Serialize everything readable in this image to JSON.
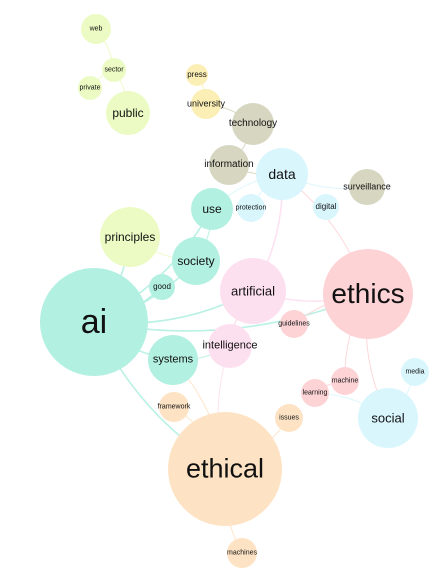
{
  "palette": {
    "teal": "#b2f0e1",
    "pink": "#fdd3d6",
    "peach": "#fde3c4",
    "lime": "#ecfbc4",
    "blue": "#d9f6fd",
    "olive": "#d6d6c1",
    "yellow": "#fcefb6",
    "lightpink": "#fde0ef"
  },
  "nodes": [
    {
      "id": "ai",
      "label": "ai",
      "color": "teal"
    },
    {
      "id": "ethics",
      "label": "ethics",
      "color": "pink"
    },
    {
      "id": "ethical",
      "label": "ethical",
      "color": "peach"
    },
    {
      "id": "artificial",
      "label": "artificial",
      "color": "lightpink"
    },
    {
      "id": "intelligence",
      "label": "intelligence",
      "color": "lightpink"
    },
    {
      "id": "social",
      "label": "social",
      "color": "blue"
    },
    {
      "id": "data",
      "label": "data",
      "color": "blue"
    },
    {
      "id": "principles",
      "label": "principles",
      "color": "lime"
    },
    {
      "id": "society",
      "label": "society",
      "color": "teal"
    },
    {
      "id": "systems",
      "label": "systems",
      "color": "teal"
    },
    {
      "id": "use",
      "label": "use",
      "color": "teal"
    },
    {
      "id": "information",
      "label": "information",
      "color": "olive"
    },
    {
      "id": "technology",
      "label": "technology",
      "color": "olive"
    },
    {
      "id": "surveillance",
      "label": "surveillance",
      "color": "olive"
    },
    {
      "id": "public",
      "label": "public",
      "color": "lime"
    },
    {
      "id": "university",
      "label": "university",
      "color": "yellow"
    },
    {
      "id": "press",
      "label": "press",
      "color": "yellow"
    },
    {
      "id": "web",
      "label": "web",
      "color": "lime"
    },
    {
      "id": "sector",
      "label": "sector",
      "color": "lime"
    },
    {
      "id": "private",
      "label": "private",
      "color": "lime"
    },
    {
      "id": "digital",
      "label": "digital",
      "color": "blue"
    },
    {
      "id": "protection",
      "label": "protection",
      "color": "blue"
    },
    {
      "id": "good",
      "label": "good",
      "color": "teal"
    },
    {
      "id": "guidelines",
      "label": "guidelines",
      "color": "pink"
    },
    {
      "id": "machine",
      "label": "machine",
      "color": "pink"
    },
    {
      "id": "learning",
      "label": "learning",
      "color": "pink"
    },
    {
      "id": "media",
      "label": "media",
      "color": "blue"
    },
    {
      "id": "issues",
      "label": "issues",
      "color": "peach"
    },
    {
      "id": "framework",
      "label": "framework",
      "color": "peach"
    },
    {
      "id": "machines",
      "label": "machines",
      "color": "peach"
    }
  ],
  "edges": [
    [
      "ai",
      "society"
    ],
    [
      "ai",
      "systems"
    ],
    [
      "ai",
      "good"
    ],
    [
      "ai",
      "principles"
    ],
    [
      "ai",
      "ethics"
    ],
    [
      "ai",
      "ethical"
    ],
    [
      "ai",
      "artificial"
    ],
    [
      "artificial",
      "intelligence"
    ],
    [
      "artificial",
      "ethics"
    ],
    [
      "artificial",
      "data"
    ],
    [
      "ethics",
      "guidelines"
    ],
    [
      "ethics",
      "social"
    ],
    [
      "ethics",
      "machine"
    ],
    [
      "machine",
      "learning"
    ],
    [
      "ethical",
      "framework"
    ],
    [
      "ethical",
      "issues"
    ],
    [
      "ethical",
      "machines"
    ],
    [
      "ethical",
      "systems"
    ],
    [
      "social",
      "media"
    ],
    [
      "data",
      "protection"
    ],
    [
      "data",
      "use"
    ],
    [
      "data",
      "surveillance"
    ],
    [
      "information",
      "technology"
    ],
    [
      "information",
      "data"
    ],
    [
      "public",
      "sector"
    ],
    [
      "sector",
      "private"
    ],
    [
      "sector",
      "web"
    ],
    [
      "university",
      "press"
    ],
    [
      "society",
      "use"
    ],
    [
      "systems",
      "intelligence"
    ],
    [
      "principles",
      "society"
    ],
    [
      "technology",
      "university"
    ],
    [
      "ethics",
      "data"
    ],
    [
      "social",
      "learning"
    ],
    [
      "intelligence",
      "ethical"
    ],
    [
      "ai",
      "use"
    ]
  ]
}
